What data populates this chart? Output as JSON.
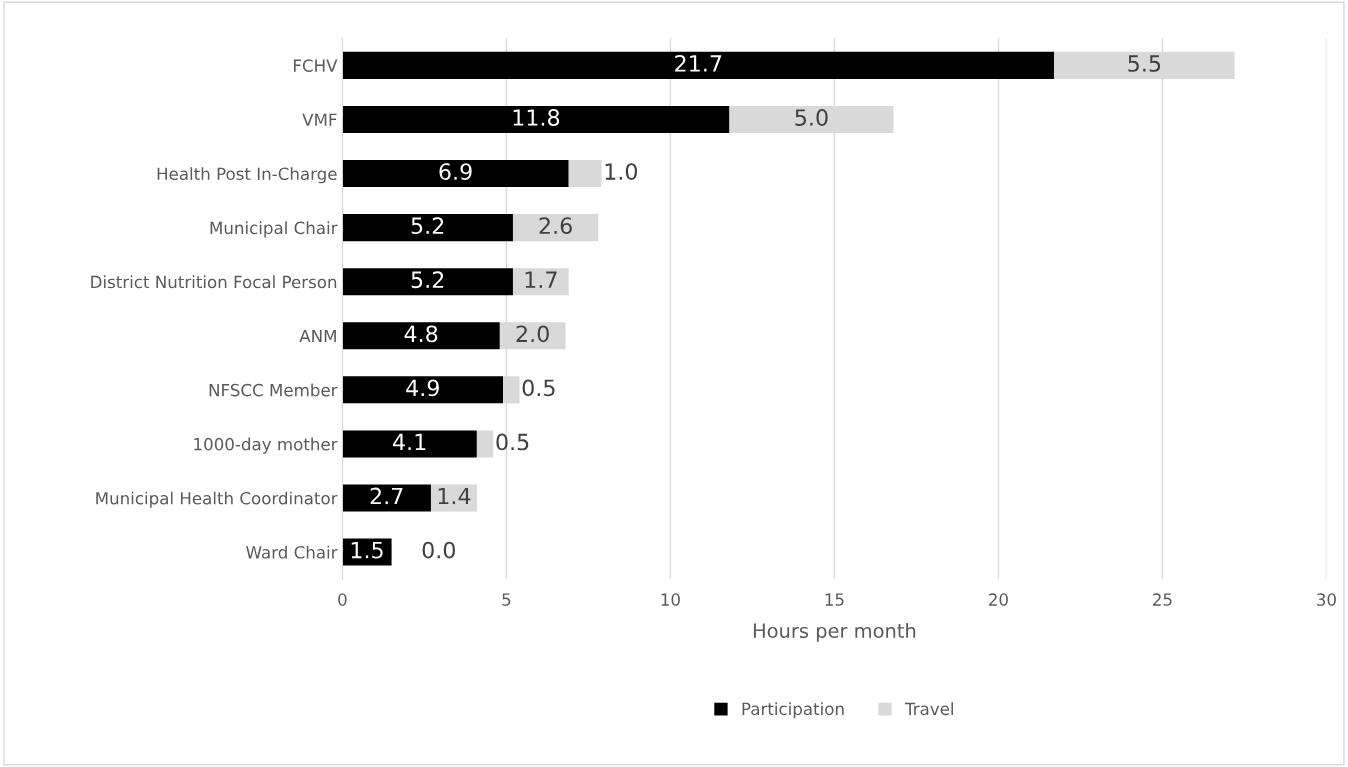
{
  "chart_data": {
    "type": "bar",
    "orientation": "horizontal",
    "stacked": true,
    "xlabel": "Hours per month",
    "categories": [
      "FCHV",
      "VMF",
      "Health Post In-Charge",
      "Municipal Chair",
      "District Nutrition Focal Person",
      "ANM",
      "NFSCC Member",
      "1000-day mother",
      "Municipal Health Coordinator",
      "Ward Chair"
    ],
    "series": [
      {
        "name": "Participation",
        "color": "#000000",
        "values": [
          21.7,
          11.8,
          6.9,
          5.2,
          5.2,
          4.8,
          4.9,
          4.1,
          2.7,
          1.5
        ],
        "value_labels": [
          "21.7",
          "11.8",
          "6.9",
          "5.2",
          "5.2",
          "4.8",
          "4.9",
          "4.1",
          "2.7",
          "1.5"
        ]
      },
      {
        "name": "Travel",
        "color": "#d9d9d9",
        "values": [
          5.5,
          5.0,
          1.0,
          2.6,
          1.7,
          2.0,
          0.5,
          0.5,
          1.4,
          0.0
        ],
        "value_labels": [
          "5.5",
          "5.0",
          "1.0",
          "2.6",
          "1.7",
          "2.0",
          "0.5",
          "0.5",
          "1.4",
          "0.0"
        ]
      }
    ],
    "xlim": [
      0,
      30
    ],
    "xticks": [
      0,
      5,
      10,
      15,
      20,
      25,
      30
    ],
    "grid": "x",
    "legend": "bottom"
  }
}
